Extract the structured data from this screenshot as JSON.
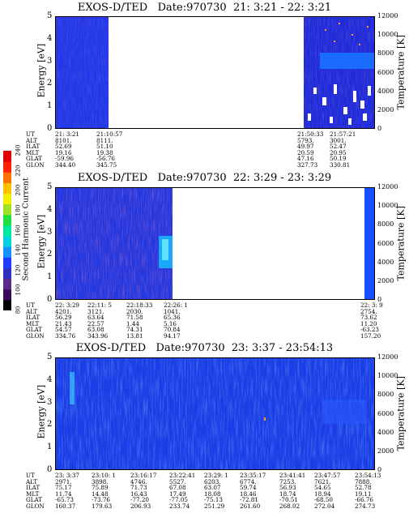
{
  "colorbar": {
    "label": "Second Harmonic Current",
    "ticks": [
      "80",
      "100",
      "120",
      "140",
      "160",
      "180",
      "200",
      "220",
      "240"
    ],
    "colors": [
      "#000000",
      "#3a0a5a",
      "#5a2a8a",
      "#3030c0",
      "#1e3cff",
      "#1490ff",
      "#00d0e0",
      "#00e8a0",
      "#20e040",
      "#a0e020",
      "#f0f000",
      "#ffc000",
      "#ff7000",
      "#ff2000",
      "#e00000"
    ]
  },
  "panels": [
    {
      "title": "EXOS-D/TED   Date:970730  21: 3:21 - 22: 3:21",
      "ylabel": "Energy [eV]",
      "ylabel_right": "Temperature [K]",
      "yticks": [
        "0",
        "1",
        "2",
        "3",
        "4",
        "5"
      ],
      "yticks_right": [
        "0",
        "2000",
        "4000",
        "6000",
        "8000",
        "10000",
        "12000"
      ],
      "ephemeris_rows": [
        "UT",
        "ALT",
        "ILAT",
        "MLT",
        "GLAT",
        "GLON"
      ],
      "ephemeris_cols": [
        [
          "21: 3:21",
          "8101.",
          "52.69",
          "19.16",
          "-59.96",
          "344.40"
        ],
        [
          "21:10:57",
          "8111.",
          "51.10",
          "19.38",
          "-56.76",
          "345.75"
        ],
        [
          "21:50:33",
          "5793.",
          "49.97",
          "20.59",
          "47.16",
          "327.73"
        ],
        [
          "21:57:21",
          "3001.",
          "52.47",
          "20.95",
          "50.19",
          "330.81"
        ]
      ]
    },
    {
      "title": "EXOS-D/TED   Date:970730  22: 3:29 - 23: 3:29",
      "ylabel": "Energy [eV]",
      "ylabel_right": "Temperature [K]",
      "yticks": [
        "0",
        "1",
        "2",
        "3",
        "4",
        "5"
      ],
      "yticks_right": [
        "0",
        "2000",
        "4000",
        "6000",
        "8000",
        "10000",
        "12000"
      ],
      "ephemeris_rows": [
        "UT",
        "ALT",
        "ILAT",
        "MLT",
        "GLAT",
        "GLON"
      ],
      "ephemeris_cols": [
        [
          "22: 3:29",
          "4201.",
          "56.29",
          "21.43",
          "54.57",
          "334.76"
        ],
        [
          "22:11: 5",
          "3121.",
          "63.64",
          "22.57",
          "63.08",
          "343.96"
        ],
        [
          "22:18:33",
          "2030.",
          "71.58",
          "1.44",
          "74.31",
          "13.81"
        ],
        [
          "22:26: 1",
          "1041.",
          "65.36",
          "5.16",
          "70.84",
          "94.17"
        ],
        [
          "22: 3: 9",
          "2754.",
          "73.62",
          "11.20",
          "-63.23",
          "157.20"
        ]
      ]
    },
    {
      "title": "EXOS-D/TED   Date:970730  23: 3:37 - 23:54:13",
      "ylabel": "Energy [eV]",
      "ylabel_right": "Temperature [K]",
      "yticks": [
        "0",
        "1",
        "2",
        "3",
        "4",
        "5"
      ],
      "yticks_right": [
        "0",
        "2000",
        "4000",
        "6000",
        "8000",
        "10000",
        "12000"
      ],
      "ephemeris_rows": [
        "UT",
        "ALT",
        "ILAT",
        "MLT",
        "GLAT",
        "GLON"
      ],
      "ephemeris_cols": [
        [
          "23: 3:37",
          "2971.",
          "75.17",
          "11.74",
          "-65.73",
          "160.37"
        ],
        [
          "23:10: 1",
          "3898.",
          "75.89",
          "14.48",
          "-73.76",
          "179.63"
        ],
        [
          "23:16:17",
          "4746.",
          "71.73",
          "16.43",
          "-77.20",
          "206.93"
        ],
        [
          "23:22:41",
          "5527.",
          "67.08",
          "17.49",
          "-77.05",
          "233.74"
        ],
        [
          "23:29: 1",
          "6203.",
          "63.07",
          "18.08",
          "-75.13",
          "251.29"
        ],
        [
          "23:35:17",
          "6774.",
          "59.74",
          "18.46",
          "-72.81",
          "261.60"
        ],
        [
          "23:41:41",
          "7253.",
          "56.93",
          "18.74",
          "-70.51",
          "268.02"
        ],
        [
          "23:47:57",
          "7621.",
          "54.65",
          "18.94",
          "-68.50",
          "272.04"
        ],
        [
          "23:54:13",
          "7888.",
          "52.78",
          "19.11",
          "-66.76",
          "274.73"
        ]
      ]
    }
  ],
  "chart_data": [
    {
      "type": "heatmap",
      "title": "EXOS-D/TED   Date:970730  21: 3:21 - 22: 3:21",
      "xlabel": "UT",
      "ylabel": "Energy [eV]",
      "ylabel_right": "Temperature [K]",
      "ylim": [
        0,
        5
      ],
      "ylim_right": [
        0,
        12000
      ],
      "x_ticks": [
        "21: 3:21",
        "21:10:57",
        "21:50:33",
        "21:57:21"
      ],
      "data_segments": [
        [
          "21: 3:21",
          "21:10:57"
        ],
        [
          "21:50:33",
          "22: 3:21"
        ]
      ],
      "dominant_level": 120,
      "features": [
        {
          "x": [
            "21:50:33",
            "22: 3:21"
          ],
          "energy": [
            2.6,
            3.2
          ],
          "level": 150
        }
      ],
      "grid": false
    },
    {
      "type": "heatmap",
      "title": "EXOS-D/TED   Date:970730  22: 3:29 - 23: 3:29",
      "xlabel": "UT",
      "ylabel": "Energy [eV]",
      "ylabel_right": "Temperature [K]",
      "ylim": [
        0,
        5
      ],
      "ylim_right": [
        0,
        12000
      ],
      "x_ticks": [
        "22: 3:29",
        "22:11: 5",
        "22:18:33",
        "22:26: 1",
        "22: 3: 9"
      ],
      "data_segments": [
        [
          "22: 3:29",
          "22:28:00"
        ],
        [
          "23: 2:00",
          "23: 3:29"
        ]
      ],
      "dominant_level": 120,
      "features": [
        {
          "x": [
            "22:26:00",
            "22:28:00"
          ],
          "energy": [
            1.5,
            3.0
          ],
          "level": 170
        }
      ],
      "grid": false
    },
    {
      "type": "heatmap",
      "title": "EXOS-D/TED   Date:970730  23: 3:37 - 23:54:13",
      "xlabel": "UT",
      "ylabel": "Energy [eV]",
      "ylabel_right": "Temperature [K]",
      "ylim": [
        0,
        5
      ],
      "ylim_right": [
        0,
        12000
      ],
      "x_ticks": [
        "23: 3:37",
        "23:10: 1",
        "23:16:17",
        "23:22:41",
        "23:29: 1",
        "23:35:17",
        "23:41:41",
        "23:47:57",
        "23:54:13"
      ],
      "data_segments": [
        [
          "23: 3:37",
          "23:54:13"
        ]
      ],
      "dominant_level": 130,
      "features": [
        {
          "x": [
            "23: 3:37",
            "23: 5:00"
          ],
          "energy": [
            3.0,
            5.0
          ],
          "level": 160
        }
      ],
      "grid": false
    }
  ]
}
